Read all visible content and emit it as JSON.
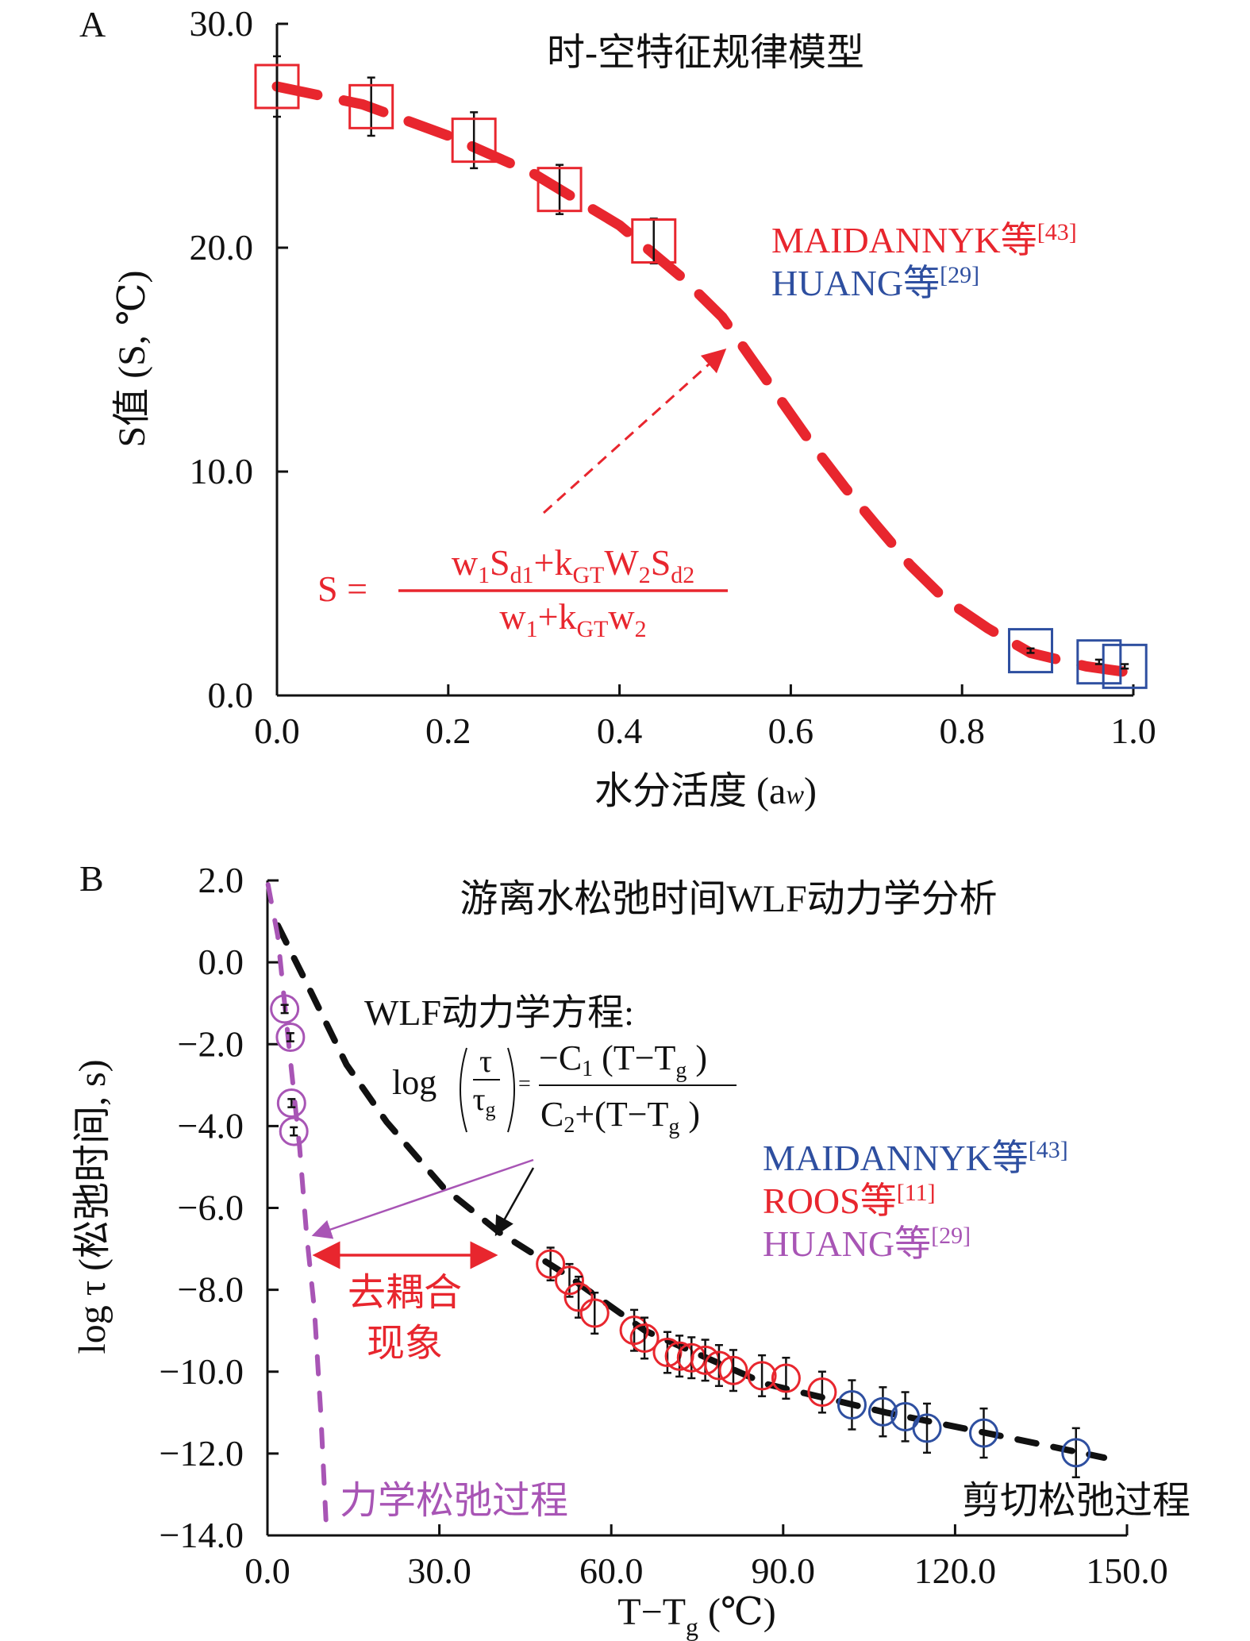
{
  "colors": {
    "red": "#e8262e",
    "blue": "#2e4fa0",
    "purple": "#a855b5",
    "black": "#111111"
  },
  "chart_data": [
    {
      "panel": "A",
      "type": "scatter",
      "title": "时-空特征规律模型",
      "xlabel": "水分活度 (a",
      "xlabel_sub": "w",
      "xlabel_end": ")",
      "ylabel": "S值 (S, ℃)",
      "xlim": [
        0,
        1.0
      ],
      "ylim": [
        0,
        30
      ],
      "xticks": [
        "0.0",
        "0.2",
        "0.4",
        "0.6",
        "0.8",
        "1.0"
      ],
      "yticks": [
        "0.0",
        "10.0",
        "20.0",
        "30.0"
      ],
      "grid": false,
      "legend_position": "right",
      "series": [
        {
          "name": "MAIDANNYK等",
          "ref": "[43]",
          "color": "red",
          "marker": "square",
          "x": [
            0.0,
            0.11,
            0.23,
            0.33,
            0.44
          ],
          "y": [
            27.2,
            26.3,
            24.8,
            22.6,
            20.3
          ],
          "err": [
            1.35,
            1.3,
            1.25,
            1.1,
            1.0
          ]
        },
        {
          "name": "HUANG等",
          "ref": "[29]",
          "color": "blue",
          "marker": "square",
          "x": [
            0.88,
            0.96,
            0.99
          ],
          "y": [
            2.0,
            1.5,
            1.3
          ],
          "err": [
            0.1,
            0.1,
            0.1
          ]
        }
      ],
      "model_curve": {
        "color": "red",
        "style": "dashed",
        "x": [
          0.0,
          0.1,
          0.2,
          0.3,
          0.4,
          0.475,
          0.52,
          0.553,
          0.59,
          0.625,
          0.663,
          0.7,
          0.74,
          0.78,
          0.83,
          0.88,
          0.945,
          1.0
        ],
        "y": [
          27.2,
          26.4,
          25.0,
          23.3,
          21.0,
          18.6,
          16.9,
          15.1,
          13.1,
          11.2,
          9.3,
          7.6,
          5.8,
          4.3,
          3.0,
          1.9,
          1.3,
          1.0
        ]
      },
      "formula": {
        "lhs": "S =",
        "numerator": [
          [
            "w",
            0
          ],
          [
            "1",
            1
          ],
          [
            "S",
            0
          ],
          [
            "d1",
            1
          ],
          [
            "+k",
            0
          ],
          [
            "GT",
            1
          ],
          [
            "W",
            0
          ],
          [
            "2",
            1
          ],
          [
            "S",
            0
          ],
          [
            "d2",
            1
          ]
        ],
        "denominator": [
          [
            "w",
            0
          ],
          [
            "1",
            1
          ],
          [
            "+k",
            0
          ],
          [
            "GT",
            1
          ],
          [
            "w",
            0
          ],
          [
            "2",
            1
          ]
        ]
      }
    },
    {
      "panel": "B",
      "type": "scatter",
      "title": "游离水松弛时间WLF动力学分析",
      "xlabel": "T−T",
      "xlabel_sub": "g",
      "xlabel_end": " (℃)",
      "ylabel": "log τ (松弛时间, s)",
      "xlim": [
        0,
        150
      ],
      "ylim": [
        -14,
        2
      ],
      "xticks": [
        "0.0",
        "30.0",
        "60.0",
        "90.0",
        "120.0",
        "150.0"
      ],
      "yticks": [
        "2.0",
        "0.0",
        "−2.0",
        "−4.0",
        "−6.0",
        "−8.0",
        "−10.0",
        "−12.0",
        "−14.0"
      ],
      "grid": false,
      "legend_position": "right",
      "series": [
        {
          "name": "MAIDANNYK等",
          "ref": "[43]",
          "color": "blue",
          "marker": "circle",
          "x": [
            102.0,
            107.4,
            111.3,
            115.1,
            125.0,
            141.1
          ],
          "y": [
            -10.81,
            -10.98,
            -11.1,
            -11.38,
            -11.5,
            -11.98
          ],
          "err": [
            0.6,
            0.6,
            0.6,
            0.6,
            0.6,
            0.6
          ]
        },
        {
          "name": "ROOS等",
          "ref": "[11]",
          "color": "red",
          "marker": "circle",
          "x": [
            49.4,
            52.7,
            54.3,
            57.1,
            64.0,
            65.8,
            69.8,
            71.9,
            74.0,
            76.4,
            78.8,
            81.3,
            86.3,
            90.5,
            96.8
          ],
          "y": [
            -7.37,
            -7.77,
            -8.18,
            -8.57,
            -8.99,
            -9.18,
            -9.53,
            -9.62,
            -9.66,
            -9.72,
            -9.85,
            -9.97,
            -10.1,
            -10.16,
            -10.5
          ],
          "err": [
            0.4,
            0.4,
            0.5,
            0.5,
            0.5,
            0.5,
            0.5,
            0.5,
            0.5,
            0.5,
            0.5,
            0.5,
            0.5,
            0.5,
            0.5
          ]
        },
        {
          "name": "HUANG等",
          "ref": "[29]",
          "color": "purple",
          "marker": "circle",
          "x": [
            3.0,
            4.0,
            4.2,
            4.6
          ],
          "y": [
            -1.14,
            -1.83,
            -3.44,
            -4.13
          ],
          "err": [
            0.1,
            0.1,
            0.1,
            0.1
          ]
        }
      ],
      "curves": [
        {
          "label": "剪切松弛过程",
          "color": "black",
          "style": "dashed",
          "x": [
            1.8,
            6.8,
            13.8,
            20.8,
            30.7,
            40.5,
            51.8,
            65.9,
            87.0,
            108.0,
            129.0,
            146.0
          ],
          "y": [
            0.9,
            -0.5,
            -2.5,
            -3.9,
            -5.5,
            -6.6,
            -7.6,
            -9.0,
            -10.3,
            -11.0,
            -11.6,
            -12.1
          ]
        },
        {
          "label": "力学松弛过程",
          "color": "purple",
          "style": "dashed",
          "x": [
            0.1,
            1.8,
            3.9,
            5.6,
            6.8,
            8.2,
            9.3,
            10.3
          ],
          "y": [
            1.9,
            0.64,
            -2.25,
            -4.5,
            -6.6,
            -8.5,
            -11.0,
            -13.9
          ]
        }
      ],
      "annotations": {
        "equation_title": "WLF动力学方程:",
        "eq_log": "log",
        "eq_tau": "τ",
        "eq_tau_g": "τ",
        "eq_g": "g",
        "eq_eq": "=",
        "eq_num": "−C",
        "eq_num_sub": "1",
        "eq_num_rest": " (T−T",
        "eq_num_g": "g",
        "eq_num_close": " )",
        "eq_den": "C",
        "eq_den_sub": "2",
        "eq_den_rest": "+(T−T",
        "eq_den_g": "g",
        "eq_den_close": " )",
        "decoupling_line1": "去耦合",
        "decoupling_line2": "现象"
      }
    }
  ]
}
